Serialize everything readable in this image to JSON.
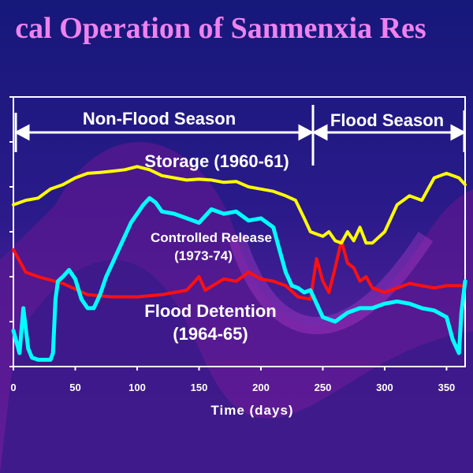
{
  "title": "cal Operation of Sanmenxia Res",
  "colors": {
    "title": "#ee82ee",
    "storage": "#ffff00",
    "release": "#ff1010",
    "detention": "#00ffff",
    "axes": "#ffffff"
  },
  "chart_data": {
    "type": "line",
    "xlabel": "Time (days)",
    "ylabel": "",
    "xlim": [
      0,
      365
    ],
    "ylim": [
      0,
      6
    ],
    "x_ticks": [
      0,
      50,
      100,
      150,
      200,
      250,
      300,
      350
    ],
    "y_tick_values": [
      0,
      1,
      2,
      3,
      4,
      5,
      6
    ],
    "grid": false,
    "series": [
      {
        "name": "Storage (1960-61)",
        "color": "#ffff00",
        "x": [
          0,
          10,
          20,
          30,
          40,
          50,
          60,
          70,
          80,
          90,
          100,
          110,
          120,
          130,
          140,
          150,
          160,
          170,
          180,
          190,
          200,
          210,
          220,
          228,
          235,
          240,
          245,
          250,
          255,
          260,
          265,
          270,
          275,
          280,
          285,
          290,
          300,
          310,
          320,
          330,
          340,
          350,
          355,
          360,
          365
        ],
        "y": [
          3.6,
          3.7,
          3.75,
          3.95,
          4.05,
          4.2,
          4.3,
          4.32,
          4.35,
          4.38,
          4.45,
          4.38,
          4.25,
          4.2,
          4.15,
          4.17,
          4.15,
          4.1,
          4.12,
          4.0,
          3.95,
          3.9,
          3.8,
          3.7,
          3.3,
          3.0,
          2.95,
          2.9,
          3.0,
          2.8,
          2.75,
          3.0,
          2.8,
          3.1,
          2.75,
          2.75,
          3.0,
          3.6,
          3.8,
          3.7,
          4.2,
          4.3,
          4.25,
          4.2,
          4.05
        ]
      },
      {
        "name": "Controlled Release (1973-74)",
        "color": "#ff1010",
        "x": [
          0,
          10,
          20,
          40,
          60,
          80,
          100,
          120,
          140,
          150,
          155,
          170,
          180,
          190,
          200,
          210,
          220,
          230,
          240,
          245,
          250,
          255,
          260,
          265,
          270,
          275,
          280,
          285,
          290,
          300,
          320,
          340,
          350,
          365
        ],
        "y": [
          2.6,
          2.1,
          2.0,
          1.85,
          1.6,
          1.55,
          1.55,
          1.6,
          1.7,
          2.0,
          1.7,
          1.95,
          1.9,
          2.1,
          1.95,
          1.9,
          1.8,
          1.55,
          1.5,
          2.4,
          1.9,
          1.65,
          2.2,
          2.8,
          2.3,
          2.2,
          1.9,
          2.0,
          1.75,
          1.65,
          1.85,
          1.75,
          1.8,
          1.8
        ]
      },
      {
        "name": "Flood Detention (1964-65)",
        "color": "#00ffff",
        "x": [
          0,
          2,
          5,
          8,
          12,
          15,
          20,
          25,
          30,
          32,
          34,
          36,
          40,
          45,
          50,
          55,
          60,
          65,
          70,
          75,
          80,
          85,
          90,
          95,
          100,
          105,
          110,
          115,
          120,
          130,
          140,
          150,
          160,
          170,
          180,
          190,
          200,
          210,
          215,
          220,
          225,
          230,
          235,
          240,
          245,
          250,
          255,
          260,
          265,
          270,
          280,
          290,
          300,
          310,
          320,
          330,
          340,
          350,
          355,
          360,
          362,
          365
        ],
        "y": [
          0.8,
          0.6,
          0.3,
          1.3,
          0.4,
          0.2,
          0.15,
          0.15,
          0.15,
          0.3,
          1.5,
          1.9,
          2.0,
          2.15,
          1.95,
          1.5,
          1.3,
          1.3,
          1.6,
          2.0,
          2.3,
          2.6,
          2.9,
          3.2,
          3.4,
          3.6,
          3.75,
          3.65,
          3.45,
          3.4,
          3.3,
          3.2,
          3.5,
          3.4,
          3.45,
          3.25,
          3.3,
          3.1,
          2.6,
          2.1,
          1.8,
          1.75,
          1.65,
          1.7,
          1.4,
          1.1,
          1.05,
          1.0,
          1.1,
          1.2,
          1.3,
          1.3,
          1.4,
          1.45,
          1.4,
          1.3,
          1.25,
          1.1,
          0.6,
          0.3,
          1.2,
          1.9
        ]
      }
    ]
  },
  "annotations": {
    "non_flood_season": "Non-Flood Season",
    "flood_season": "Flood Season",
    "storage": "Storage (1960-61)",
    "controlled_release_line1": "Controlled Release",
    "controlled_release_line2": "(1973-74)",
    "flood_detention_line1": "Flood Detention",
    "flood_detention_line2": "(1964-65)"
  }
}
